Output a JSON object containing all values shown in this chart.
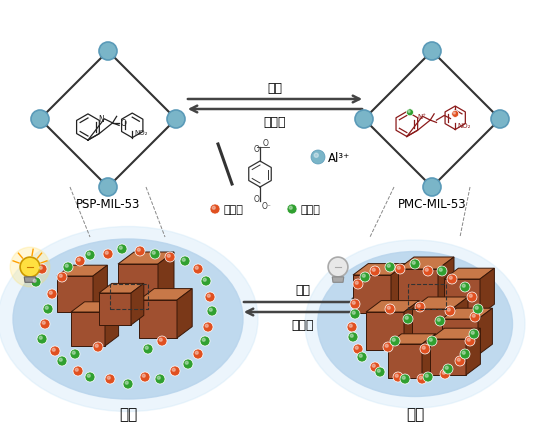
{
  "label_psp": "PSP-MIL-53",
  "label_pmc": "PMC-MIL-53",
  "label_des": "脱附",
  "label_ads": "吸附",
  "label_dark1": "黑暗",
  "label_light1": "可见光",
  "label_dark2": "黑暗",
  "label_light2": "可见光",
  "label_al": "Al³⁺",
  "label_cation": "阳离子",
  "label_anion": "阴离子",
  "arrow_color": "#444444",
  "node_color": "#7ab5c8",
  "node_edge_color": "#5a9ab8",
  "mol_color_psp": "#222222",
  "mol_color_pmc": "#8b1a1a",
  "cation_color": "#e05020",
  "anion_color": "#30a030",
  "bulb_yellow_color": "#f0c020",
  "bulb_off_color": "#cccccc",
  "cube_front": "#a05030",
  "cube_top": "#c87848",
  "cube_right": "#7a3818",
  "bg_blue": "#b8d4ec"
}
